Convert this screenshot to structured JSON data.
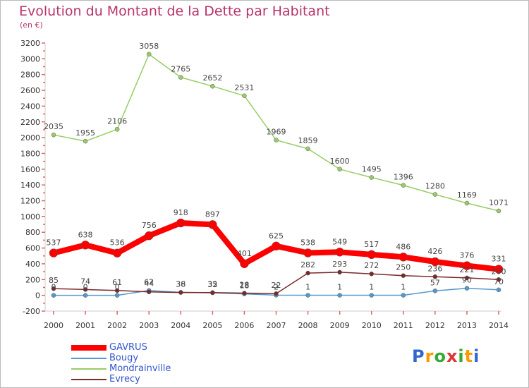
{
  "chart_data": {
    "type": "line",
    "title": "Evolution du Montant de la Dette par Habitant",
    "subtitle": "(en €)",
    "x": [
      "2000",
      "2001",
      "2002",
      "2003",
      "2004",
      "2005",
      "2006",
      "2007",
      "2008",
      "2009",
      "2010",
      "2011",
      "2012",
      "2013",
      "2014"
    ],
    "ylim": [
      -200,
      3200
    ],
    "yticks": [
      -200,
      0,
      200,
      400,
      600,
      800,
      1000,
      1200,
      1400,
      1600,
      1800,
      2000,
      2200,
      2400,
      2600,
      2800,
      3000,
      3200
    ],
    "grid": false,
    "legend_position": "bottom-left",
    "series": [
      {
        "name": "GAVRUS",
        "color": "#ff0000",
        "values": [
          537,
          638,
          536,
          756,
          918,
          897,
          401,
          625,
          538,
          549,
          517,
          486,
          426,
          376,
          331
        ]
      },
      {
        "name": "Bougy",
        "color": "#5599cc",
        "values": [
          0,
          0,
          0,
          62,
          38,
          32,
          18,
          2,
          1,
          1,
          1,
          1,
          57,
          90,
          70
        ]
      },
      {
        "name": "Mondrainville",
        "color": "#99cc66",
        "values": [
          2035,
          1955,
          2106,
          3058,
          2765,
          2652,
          2531,
          1969,
          1859,
          1600,
          1495,
          1396,
          1280,
          1169,
          1071
        ]
      },
      {
        "name": "Evrecy",
        "color": "#7a2a2a",
        "values": [
          85,
          74,
          61,
          44,
          36,
          35,
          28,
          22,
          282,
          293,
          272,
          250,
          236,
          221,
          200
        ]
      }
    ]
  },
  "logo": {
    "letters": [
      "P",
      "r",
      "o",
      "x",
      "i",
      "t",
      "i"
    ],
    "colors": [
      "#3366cc",
      "#ff9900",
      "#33aa33",
      "#dd3333",
      "#33aa33",
      "#ff9900",
      "#3366cc"
    ]
  }
}
